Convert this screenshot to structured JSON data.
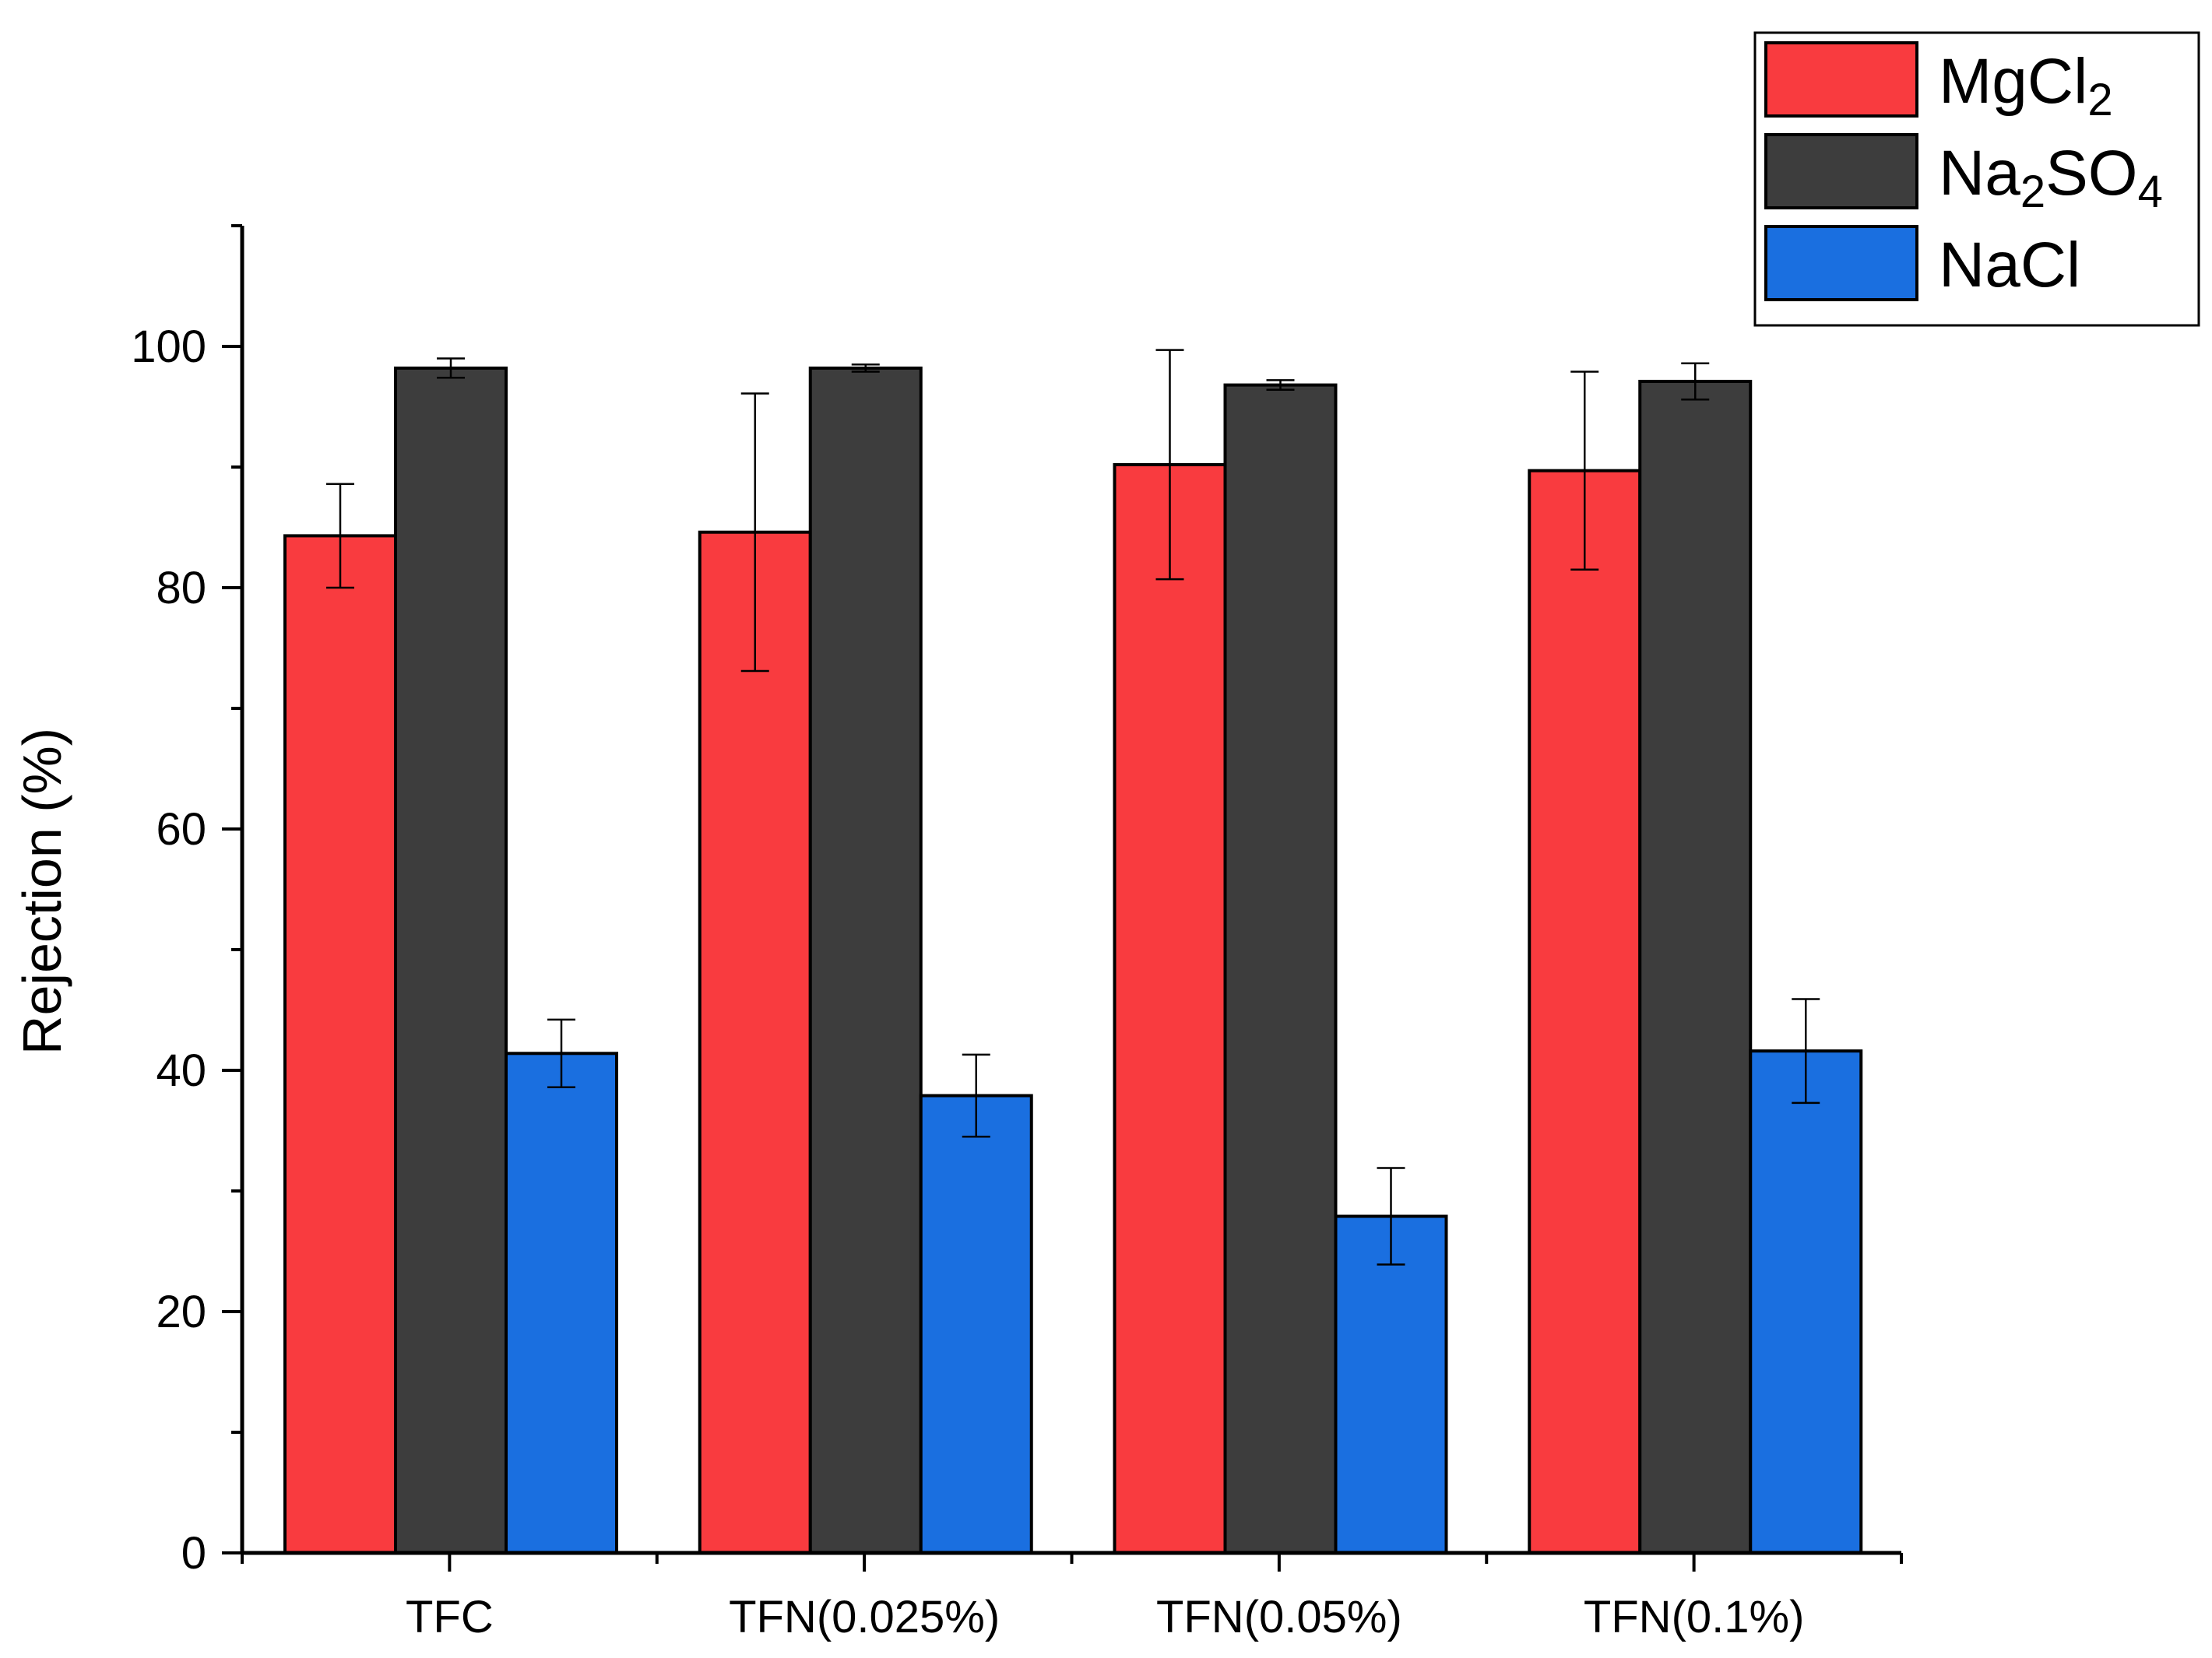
{
  "chart_data": {
    "type": "bar",
    "title": "",
    "xlabel": "",
    "ylabel": "Rejection (%)",
    "ylim": [
      0,
      110
    ],
    "yticks": [
      0,
      20,
      40,
      60,
      80,
      100
    ],
    "grid": false,
    "legend_position": "top-right",
    "categories": [
      "TFC",
      "TFN(0.025%)",
      "TFN(0.05%)",
      "TFN(0.1%)"
    ],
    "series": [
      {
        "name": "MgCl2",
        "label_main": "MgCl",
        "label_sub1": "2",
        "label_mid": "",
        "label_sub2": "",
        "color": "#f93b3f",
        "values": [
          84.3,
          84.6,
          90.2,
          89.7
        ],
        "errors": [
          4.3,
          11.5,
          9.5,
          8.2
        ]
      },
      {
        "name": "Na2SO4",
        "label_main": "Na",
        "label_sub1": "2",
        "label_mid": "SO",
        "label_sub2": "4",
        "color": "#3d3d3d",
        "values": [
          98.2,
          98.2,
          96.8,
          97.1
        ],
        "errors": [
          0.8,
          0.3,
          0.4,
          1.5
        ]
      },
      {
        "name": "NaCl",
        "label_main": "NaCl",
        "label_sub1": "",
        "label_mid": "",
        "label_sub2": "",
        "color": "#1a6fe0",
        "values": [
          41.4,
          37.9,
          27.9,
          41.6
        ],
        "errors": [
          2.8,
          3.4,
          4.0,
          4.3
        ]
      }
    ]
  }
}
